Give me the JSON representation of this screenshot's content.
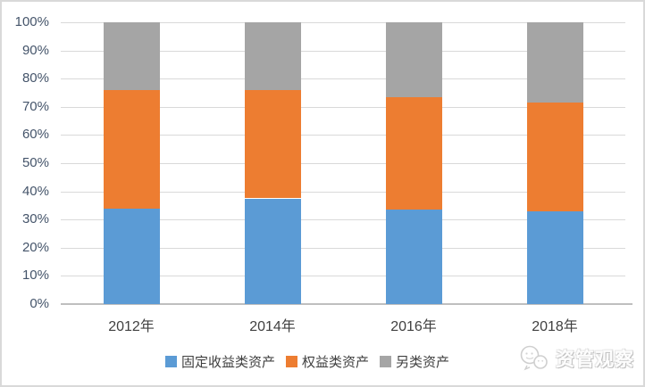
{
  "chart_data": {
    "type": "bar",
    "stacked": true,
    "percent": true,
    "title": "",
    "xlabel": "",
    "ylabel": "",
    "categories": [
      "2012年",
      "2014年",
      "2016年",
      "2018年"
    ],
    "series": [
      {
        "name": "固定收益类资产",
        "color": "#5B9BD5",
        "values": [
          34,
          37.5,
          33.5,
          33
        ]
      },
      {
        "name": "权益类资产",
        "color": "#ED7D31",
        "values": [
          42,
          38.5,
          40,
          38.5
        ]
      },
      {
        "name": "另类资产",
        "color": "#A5A5A5",
        "values": [
          24,
          24,
          26.5,
          28.5
        ]
      }
    ],
    "ylim": [
      0,
      100
    ],
    "ytick_step": 10,
    "ytick_suffix": "%",
    "grid": true,
    "legend_position": "bottom"
  },
  "colors": {
    "gridline": "#D9D9D9",
    "axis_line": "#BFBFBF",
    "y_label": "#44546A",
    "x_label": "#404040",
    "legend_label": "#404040",
    "frame_border": "#D9D9D9"
  },
  "watermark": {
    "text": "资管观察",
    "icon": "wechat-logo-icon"
  }
}
